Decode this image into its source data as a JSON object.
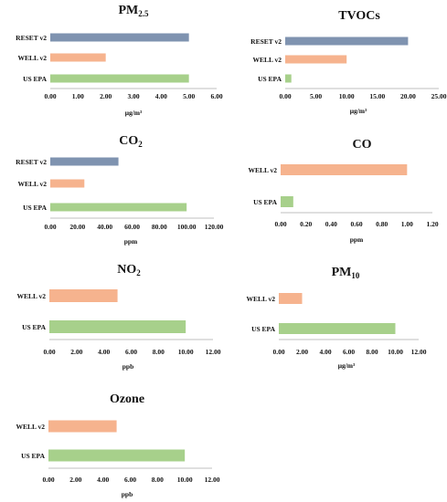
{
  "colors": {
    "RESET v2": "#7f93b0",
    "WELL v2": "#f6b38e",
    "US EPA": "#a7d08b",
    "axis": "#bfbfbf"
  },
  "chart_data": [
    {
      "type": "bar",
      "orientation": "horizontal",
      "title": "PM",
      "title_sub": "2.5",
      "categories": [
        "RESET v2",
        "WELL v2",
        "US EPA"
      ],
      "values": [
        5,
        2,
        5
      ],
      "xlabel": "μg/m³",
      "xlim": [
        0,
        6
      ],
      "ticks": [
        "0.00",
        "1.00",
        "2.00",
        "3.00",
        "4.00",
        "5.00",
        "6.00"
      ]
    },
    {
      "type": "bar",
      "orientation": "horizontal",
      "title": "TVOCs",
      "title_sub": "",
      "categories": [
        "RESET v2",
        "WELL v2",
        "US EPA"
      ],
      "values": [
        20,
        10,
        1
      ],
      "xlabel": "μg/m³",
      "xlim": [
        0,
        25
      ],
      "ticks": [
        "0.00",
        "5.00",
        "10.00",
        "15.00",
        "20.00",
        "25.00"
      ]
    },
    {
      "type": "bar",
      "orientation": "horizontal",
      "title": "CO",
      "title_sub": "2",
      "categories": [
        "RESET v2",
        "WELL v2",
        "US EPA"
      ],
      "values": [
        50,
        25,
        100
      ],
      "xlabel": "ppm",
      "xlim": [
        0,
        120
      ],
      "ticks": [
        "0.00",
        "20.00",
        "40.00",
        "60.00",
        "80.00",
        "100.00",
        "120.00"
      ]
    },
    {
      "type": "bar",
      "orientation": "horizontal",
      "title": "CO",
      "title_sub": "",
      "categories": [
        "WELL v2",
        "US EPA"
      ],
      "values": [
        1,
        0.1
      ],
      "xlabel": "ppm",
      "xlim": [
        0,
        1.2
      ],
      "ticks": [
        "0.00",
        "0.20",
        "0.40",
        "0.60",
        "0.80",
        "1.00",
        "1.20"
      ]
    },
    {
      "type": "bar",
      "orientation": "horizontal",
      "title": "NO",
      "title_sub": "2",
      "categories": [
        "WELL v2",
        "US EPA"
      ],
      "values": [
        5,
        10
      ],
      "xlabel": "ppb",
      "xlim": [
        0,
        12
      ],
      "ticks": [
        "0.00",
        "2.00",
        "4.00",
        "6.00",
        "8.00",
        "10.00",
        "12.00"
      ]
    },
    {
      "type": "bar",
      "orientation": "horizontal",
      "title": "PM",
      "title_sub": "10",
      "categories": [
        "WELL v2",
        "US EPA"
      ],
      "values": [
        2,
        10
      ],
      "xlabel": "μg/m³",
      "xlim": [
        0,
        12
      ],
      "ticks": [
        "0.00",
        "2.00",
        "4.00",
        "6.00",
        "8.00",
        "10.00",
        "12.00"
      ]
    },
    {
      "type": "bar",
      "orientation": "horizontal",
      "title": "Ozone",
      "title_sub": "",
      "categories": [
        "WELL v2",
        "US EPA"
      ],
      "values": [
        5,
        10
      ],
      "xlabel": "ppb",
      "xlim": [
        0,
        12
      ],
      "ticks": [
        "0.00",
        "2.00",
        "4.00",
        "6.00",
        "8.00",
        "10.00",
        "12.00"
      ]
    }
  ]
}
